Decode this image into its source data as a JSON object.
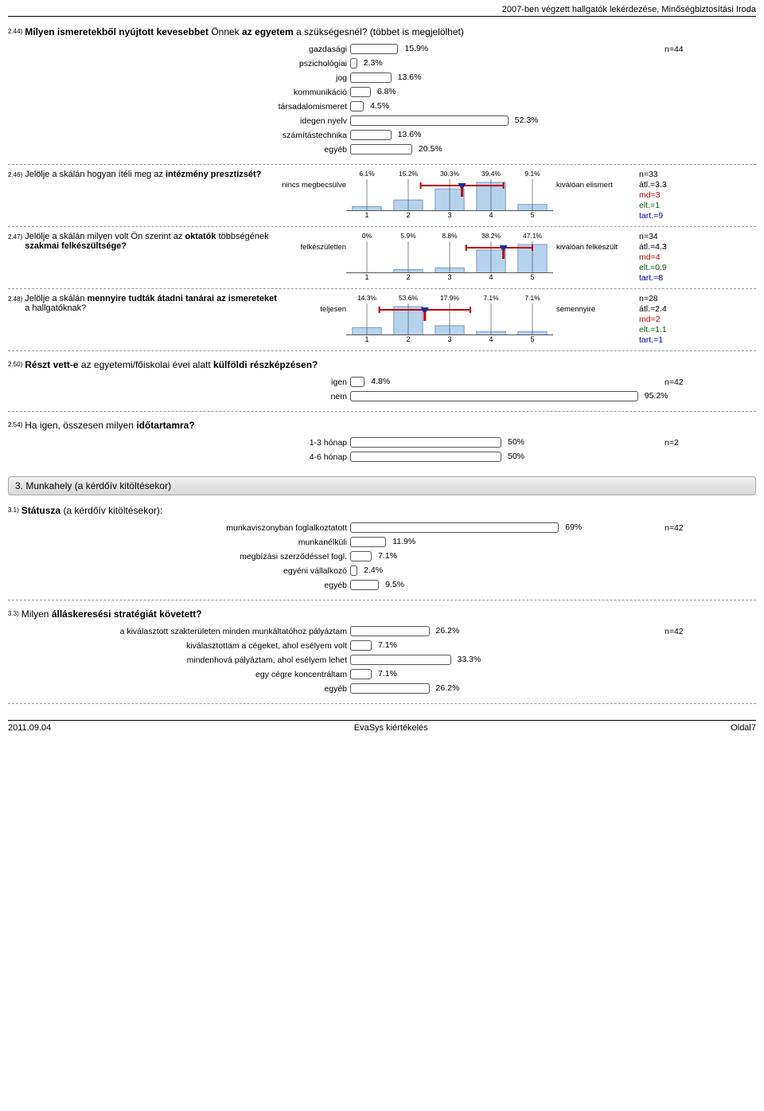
{
  "header": "2007-ben végzett hallgatók lekérdezése, Minőségbiztosítási Iroda",
  "footer": {
    "left": "2011.09.04",
    "center": "EvaSys kiértékelés",
    "right": "Oldal7"
  },
  "q244": {
    "num": "2.44)",
    "text_pre": "Milyen ismeretekből nyújtott kevesebbet",
    "text_mid": " Önnek ",
    "text_bold2": "az egyetem",
    "text_post": " a szükségesnél? (többet is megjelölhet)",
    "n": "n=44",
    "items": [
      {
        "label": "gazdasági",
        "pct": 15.9
      },
      {
        "label": "pszichológiai",
        "pct": 2.3
      },
      {
        "label": "jog",
        "pct": 13.6
      },
      {
        "label": "kommunikáció",
        "pct": 6.8
      },
      {
        "label": "társadalomismeret",
        "pct": 4.5
      },
      {
        "label": "idegen nyelv",
        "pct": 52.3
      },
      {
        "label": "számítástechnika",
        "pct": 13.6
      },
      {
        "label": "egyéb",
        "pct": 20.5
      }
    ]
  },
  "likert_style": {
    "bar_fill": "#b6d3ee",
    "bar_stroke": "#7a9cc4",
    "grid_color": "#555",
    "ci_color": "#c00000",
    "marker_color": "#0033a0"
  },
  "q246": {
    "num": "2.46)",
    "text": "Jelölje a skálán hogyan ítéli meg az ",
    "bold": "intézmény presztízsét?",
    "left": "nincs megbecsülve",
    "right": "kiválóan elismert",
    "pcts": [
      6.1,
      15.2,
      30.3,
      39.4,
      9.1
    ],
    "mean": 3.3,
    "ci_lo": 2.3,
    "ci_hi": 4.3,
    "stats": [
      "n=33",
      "átl.=3.3",
      "md=3",
      "elt.=1",
      "tart.=9"
    ]
  },
  "q247": {
    "num": "2.47)",
    "text": "Jelölje a skálán milyen volt Ön szerint az ",
    "bold": "oktatók",
    "text2": " többségének ",
    "bold2": "szakmai felkészültsége?",
    "left": "felkészületlen",
    "right": "kiválóan felkészült",
    "pcts": [
      0,
      5.9,
      8.8,
      38.2,
      47.1
    ],
    "mean": 4.3,
    "ci_lo": 3.4,
    "ci_hi": 5.0,
    "stats": [
      "n=34",
      "átl.=4.3",
      "md=4",
      "elt.=0.9",
      "tart.=8"
    ]
  },
  "q248": {
    "num": "2.48)",
    "text": "Jelölje a skálán ",
    "bold": "mennyire tudták átadni tanárai az ismereteket",
    "text2": " a hallgatóknak?",
    "left": "teljesen",
    "right": "semennyire",
    "pcts": [
      14.3,
      53.6,
      17.9,
      7.1,
      7.1
    ],
    "mean": 2.4,
    "ci_lo": 1.3,
    "ci_hi": 3.5,
    "stats": [
      "n=28",
      "átl.=2.4",
      "md=2",
      "elt.=1.1",
      "tart.=1"
    ]
  },
  "q250": {
    "num": "2.50)",
    "text_pre": "Részt vett-e",
    "text_mid": " az egyetemi/főiskolai évei alatt ",
    "text_bold2": "külföldi részképzésen?",
    "n": "n=42",
    "items": [
      {
        "label": "igen",
        "pct": 4.8
      },
      {
        "label": "nem",
        "pct": 95.2
      }
    ]
  },
  "q254": {
    "num": "2.54)",
    "text": "Ha igen, összesen milyen ",
    "bold": "időtartamra?",
    "n": "n=2",
    "items": [
      {
        "label": "1-3 hónap",
        "pct": 50
      },
      {
        "label": "4-6 hónap",
        "pct": 50
      }
    ]
  },
  "section3": "3. Munkahely (a kérdőív kitöltésekor)",
  "q31": {
    "num": "3.1)",
    "text_bold": "Státusza",
    "text_post": " (a kérdőív kitöltésekor):",
    "n": "n=42",
    "items": [
      {
        "label": "munkaviszonyban foglalkoztatott",
        "pct": 69
      },
      {
        "label": "munkanélküli",
        "pct": 11.9
      },
      {
        "label": "megbízási szerződéssel fogl.",
        "pct": 7.1
      },
      {
        "label": "egyéni vállalkozó",
        "pct": 2.4
      },
      {
        "label": "egyéb",
        "pct": 9.5
      }
    ]
  },
  "q33": {
    "num": "3.3)",
    "text": "Milyen ",
    "bold": "álláskeresési stratégiát követett?",
    "n": "n=42",
    "items": [
      {
        "label": "a kiválasztott szakterületen minden munkáltatóhoz pályáztam",
        "pct": 26.2
      },
      {
        "label": "kiválasztottam a cégeket, ahol esélyem volt",
        "pct": 7.1
      },
      {
        "label": "mindenhová pályáztam, ahol esélyem lehet",
        "pct": 33.3
      },
      {
        "label": "egy cégre koncentráltam",
        "pct": 7.1
      },
      {
        "label": "egyéb",
        "pct": 26.2
      }
    ]
  }
}
